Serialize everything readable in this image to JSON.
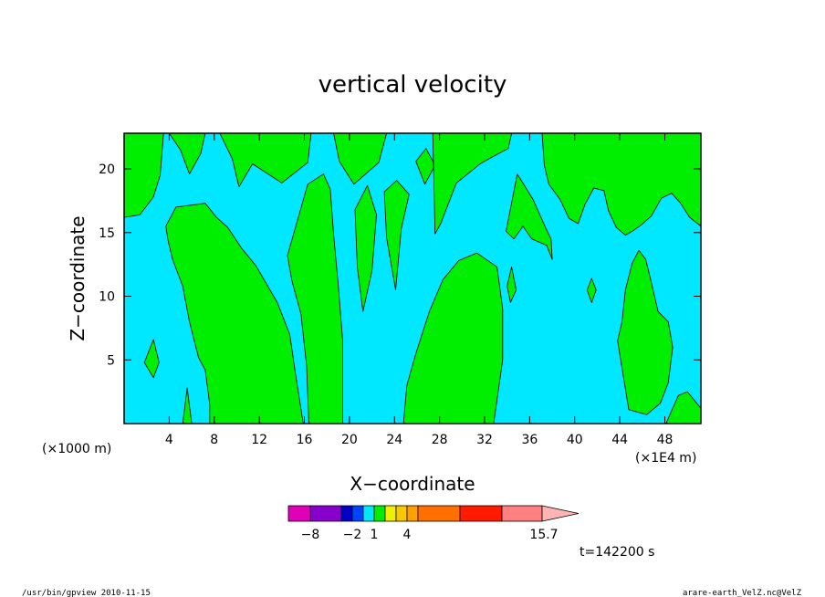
{
  "chart_data": {
    "type": "heatmap",
    "title": "vertical velocity",
    "xlabel": "X−coordinate",
    "ylabel": "Z−coordinate",
    "x_unit_left": "(×1000 m)",
    "x_unit_right": "(×1E4 m)",
    "xlim": [
      0,
      51.2
    ],
    "ylim": [
      0,
      22.8
    ],
    "xticks": [
      4,
      8,
      12,
      16,
      20,
      24,
      28,
      32,
      36,
      40,
      44,
      48
    ],
    "xtick_labels": [
      "4",
      "8",
      "12",
      "16",
      "20",
      "24",
      "28",
      "32",
      "36",
      "40",
      "44",
      "48"
    ],
    "yticks": [
      5,
      10,
      15,
      20
    ],
    "ytick_labels": [
      "5",
      "10",
      "15",
      "20"
    ],
    "background_color": "#00e8ff",
    "positive_color": "#00ee00",
    "regions": [
      {
        "level": "positive",
        "polygon": [
          [
            0,
            22.8
          ],
          [
            3.5,
            22.8
          ],
          [
            3.2,
            19.5
          ],
          [
            2.6,
            17.8
          ],
          [
            1.4,
            16.4
          ],
          [
            0,
            16.2
          ]
        ]
      },
      {
        "level": "positive",
        "polygon": [
          [
            4,
            22.8
          ],
          [
            7.2,
            22.8
          ],
          [
            6.8,
            21.2
          ],
          [
            5.8,
            19.6
          ],
          [
            5,
            21.5
          ]
        ]
      },
      {
        "level": "positive",
        "polygon": [
          [
            8.5,
            22.8
          ],
          [
            16.6,
            22.8
          ],
          [
            16.3,
            20.5
          ],
          [
            14,
            18.9
          ],
          [
            11.4,
            20.4
          ],
          [
            10.2,
            18.6
          ],
          [
            9.6,
            20.8
          ]
        ]
      },
      {
        "level": "positive",
        "polygon": [
          [
            3.7,
            15.5
          ],
          [
            4.6,
            17
          ],
          [
            7.2,
            17.3
          ],
          [
            8.2,
            16.2
          ],
          [
            9.2,
            15.4
          ],
          [
            10.4,
            13.8
          ],
          [
            11.7,
            12.4
          ],
          [
            13.6,
            9.5
          ],
          [
            14.7,
            7
          ],
          [
            15.2,
            4
          ],
          [
            15.9,
            0
          ],
          [
            7.6,
            0
          ],
          [
            7.6,
            1.5
          ],
          [
            7.2,
            4.2
          ],
          [
            6.6,
            5.2
          ],
          [
            5.8,
            8
          ],
          [
            5.2,
            10.8
          ],
          [
            4.3,
            12.9
          ],
          [
            3.9,
            14.4
          ]
        ]
      },
      {
        "level": "positive",
        "polygon": [
          [
            14.5,
            13.2
          ],
          [
            15.5,
            16.3
          ],
          [
            16.3,
            18.8
          ],
          [
            17.7,
            19.6
          ],
          [
            18.3,
            18.4
          ],
          [
            18.6,
            14.8
          ],
          [
            19,
            11
          ],
          [
            19.4,
            6.5
          ],
          [
            19.4,
            0
          ],
          [
            16.4,
            0
          ],
          [
            16.2,
            4.5
          ],
          [
            15.7,
            8.6
          ],
          [
            14.9,
            11.2
          ]
        ]
      },
      {
        "level": "positive",
        "polygon": [
          [
            18.6,
            22.8
          ],
          [
            23.3,
            22.8
          ],
          [
            22.6,
            20.5
          ],
          [
            20.4,
            18.8
          ],
          [
            19.1,
            20.6
          ]
        ]
      },
      {
        "level": "positive",
        "polygon": [
          [
            20.5,
            16.8
          ],
          [
            21.6,
            18.7
          ],
          [
            22.4,
            16.4
          ],
          [
            22,
            12
          ],
          [
            21.2,
            8.8
          ],
          [
            20.7,
            12.3
          ]
        ]
      },
      {
        "level": "positive",
        "polygon": [
          [
            23.1,
            18.2
          ],
          [
            24.2,
            19.1
          ],
          [
            25.3,
            18
          ],
          [
            24.6,
            15.3
          ],
          [
            24.1,
            10.5
          ],
          [
            23.3,
            14.6
          ]
        ]
      },
      {
        "level": "positive",
        "polygon": [
          [
            25.9,
            20.6
          ],
          [
            26.8,
            21.6
          ],
          [
            27.6,
            20.3
          ],
          [
            26.7,
            18.8
          ]
        ]
      },
      {
        "level": "positive",
        "polygon": [
          [
            27.4,
            22.8
          ],
          [
            34.4,
            22.8
          ],
          [
            34.1,
            21.6
          ],
          [
            32.6,
            20.9
          ],
          [
            31.6,
            20.4
          ],
          [
            30.5,
            19.6
          ],
          [
            29.5,
            18.9
          ],
          [
            28.8,
            17.3
          ],
          [
            28.1,
            15.7
          ],
          [
            27.6,
            14.9
          ]
        ]
      },
      {
        "level": "positive",
        "polygon": [
          [
            24.8,
            0
          ],
          [
            32.8,
            0
          ],
          [
            33.6,
            5
          ],
          [
            33.6,
            9
          ],
          [
            33.1,
            12.3
          ],
          [
            31.3,
            13.4
          ],
          [
            29.7,
            12.8
          ],
          [
            28.3,
            11.3
          ],
          [
            27.1,
            8.8
          ],
          [
            25.9,
            5.5
          ],
          [
            25.1,
            3
          ]
        ]
      },
      {
        "level": "positive",
        "polygon": [
          [
            34,
            10.8
          ],
          [
            34.4,
            12.3
          ],
          [
            34.8,
            10.5
          ],
          [
            34.3,
            9.5
          ]
        ]
      },
      {
        "level": "positive",
        "polygon": [
          [
            33.9,
            15.1
          ],
          [
            34.9,
            19.6
          ],
          [
            36.3,
            17.6
          ],
          [
            37.4,
            15.4
          ],
          [
            37.9,
            14.5
          ],
          [
            38,
            12.9
          ],
          [
            37.5,
            14
          ],
          [
            36.2,
            14.5
          ],
          [
            35.4,
            15.5
          ],
          [
            34.6,
            14.5
          ]
        ]
      },
      {
        "level": "positive",
        "polygon": [
          [
            37.1,
            22.8
          ],
          [
            51.2,
            22.8
          ],
          [
            51.2,
            15.5
          ],
          [
            50.2,
            16.2
          ],
          [
            49.4,
            17.3
          ],
          [
            48.6,
            18.1
          ],
          [
            47.7,
            17.7
          ],
          [
            46.8,
            16.3
          ],
          [
            45.9,
            15.6
          ],
          [
            45.1,
            15.1
          ],
          [
            44.5,
            14.8
          ],
          [
            43.7,
            15.4
          ],
          [
            43,
            16.7
          ],
          [
            42.6,
            18.3
          ],
          [
            41.7,
            18.5
          ],
          [
            40.9,
            17.2
          ],
          [
            40.3,
            15.7
          ],
          [
            39.5,
            16.1
          ],
          [
            38.7,
            17.6
          ],
          [
            37.7,
            18.8
          ],
          [
            37.3,
            20.3
          ]
        ]
      },
      {
        "level": "positive",
        "polygon": [
          [
            43.8,
            6.5
          ],
          [
            44.2,
            8
          ],
          [
            44.5,
            10.5
          ],
          [
            45.1,
            12.6
          ],
          [
            45.7,
            13.6
          ],
          [
            46.3,
            12.9
          ],
          [
            46.8,
            11.1
          ],
          [
            47.4,
            8.8
          ],
          [
            48.3,
            8
          ],
          [
            48.7,
            6
          ],
          [
            48.3,
            3.2
          ],
          [
            47.6,
            1.6
          ],
          [
            46.4,
            0.7
          ],
          [
            44.8,
            1.1
          ]
        ]
      },
      {
        "level": "positive",
        "polygon": [
          [
            48.1,
            0
          ],
          [
            51.2,
            0
          ],
          [
            51.2,
            1.2
          ],
          [
            50,
            2.5
          ],
          [
            49.2,
            2.2
          ]
        ]
      },
      {
        "level": "positive",
        "polygon": [
          [
            41.1,
            10.5
          ],
          [
            41.5,
            11.4
          ],
          [
            41.9,
            10.5
          ],
          [
            41.5,
            9.5
          ]
        ]
      },
      {
        "level": "positive",
        "polygon": [
          [
            1.8,
            4.8
          ],
          [
            2.6,
            6.6
          ],
          [
            3.1,
            4.8
          ],
          [
            2.6,
            3.6
          ]
        ]
      },
      {
        "level": "positive",
        "polygon": [
          [
            5.2,
            0
          ],
          [
            5.6,
            2.8
          ],
          [
            6,
            0
          ]
        ]
      }
    ],
    "colorbar": {
      "colors": [
        "#e000b8",
        "#8800cc",
        "#0000c8",
        "#0044ff",
        "#00e8ff",
        "#00ee00",
        "#f0f000",
        "#f8c800",
        "#ffa000",
        "#ff7000",
        "#ff1a00",
        "#ff8080",
        "#ffb4b4"
      ],
      "tick_labels": [
        "−8",
        "−2",
        "1",
        "4",
        "15.7"
      ]
    },
    "time_label": "t=142200 s"
  },
  "footer": {
    "left": "/usr/bin/gpview   2010-11-15",
    "right": "arare-earth_VelZ.nc@VelZ"
  }
}
